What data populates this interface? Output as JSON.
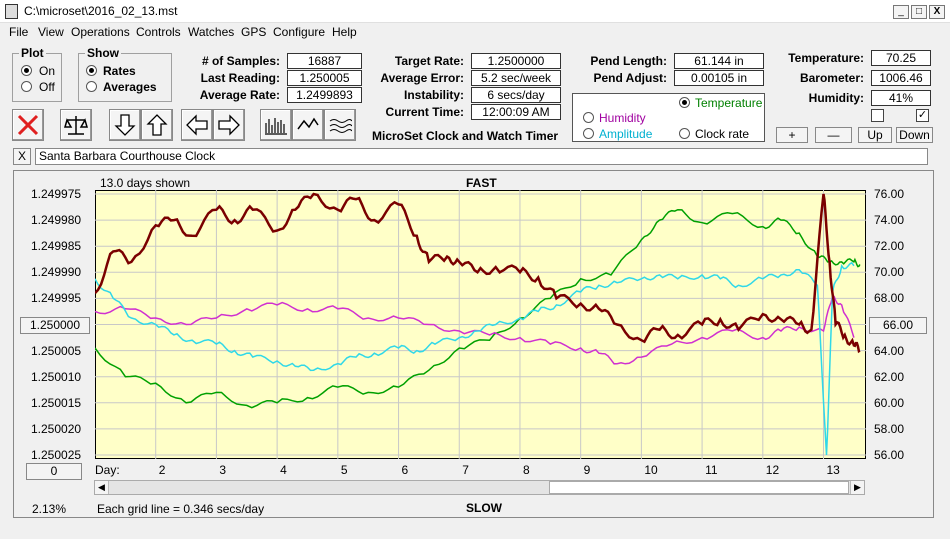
{
  "window": {
    "title": "C:\\microset\\2016_02_13.mst",
    "minimize": "_",
    "maximize": "□",
    "close": "X"
  },
  "menu": [
    "File",
    "View",
    "Operations",
    "Controls",
    "Watches",
    "GPS",
    "Configure",
    "Help"
  ],
  "plot_group": {
    "legend": "Plot",
    "options": [
      "On",
      "Off"
    ],
    "selected": 0
  },
  "show_group": {
    "legend": "Show",
    "options": [
      "Rates",
      "Averages"
    ],
    "selected": 0
  },
  "readouts_left": [
    {
      "label": "# of Samples:",
      "value": "16887"
    },
    {
      "label": "Last Reading:",
      "value": "1.250005"
    },
    {
      "label": "Average Rate:",
      "value": "1.2499893"
    }
  ],
  "readouts_mid": [
    {
      "label": "Target Rate:",
      "value": "1.2500000"
    },
    {
      "label": "Average Error:",
      "value": "5.2 sec/week"
    },
    {
      "label": "Instability:",
      "value": "6 secs/day"
    },
    {
      "label": "Current Time:",
      "value": "12:00:09 AM"
    }
  ],
  "readouts_pend": [
    {
      "label": "Pend Length:",
      "value": "61.144 in"
    },
    {
      "label": "Pend Adjust:",
      "value": "0.00105 in"
    }
  ],
  "readouts_env": [
    {
      "label": "Temperature:",
      "value": "70.25"
    },
    {
      "label": "Barometer:",
      "value": "1006.46"
    },
    {
      "label": "Humidity:",
      "value": "41%"
    }
  ],
  "app_caption": "MicroSet Clock and Watch Timer",
  "series_select": {
    "options": [
      {
        "label": "Temperature",
        "color": "#008000",
        "selected": true
      },
      {
        "label": "Humidity",
        "color": "#a000a0",
        "selected": false
      },
      {
        "label": "Amplitude",
        "color": "#00b0d0",
        "selected": false
      },
      {
        "label": "Clock rate",
        "color": "#000000",
        "selected": false
      }
    ]
  },
  "checkbox_marks": [
    "",
    "✓"
  ],
  "adjust_buttons": [
    "+",
    "—",
    "Up",
    "Down"
  ],
  "clock_name": {
    "close_label": "X",
    "value": "Santa Barbara Courthouse Clock"
  },
  "plot": {
    "days_shown": "13.0 days shown",
    "top_label": "FAST",
    "bottom_label": "SLOW",
    "left_center_button": "1.250000",
    "right_center_button": "66.00",
    "bottom_left_button": "0",
    "zoom_readout": "2.13%",
    "grid_note": "Each grid line = 0.346 secs/day",
    "day_prefix": "Day:"
  },
  "chart_data": {
    "type": "line",
    "x_ticks": [
      2,
      3,
      4,
      5,
      6,
      7,
      8,
      9,
      10,
      11,
      12,
      13
    ],
    "xlim": [
      1,
      13.7
    ],
    "left_axis": {
      "ticks": [
        "1.249975",
        "1.249980",
        "1.249985",
        "1.249990",
        "1.249995",
        "1.250000",
        "1.250005",
        "1.250010",
        "1.250015",
        "1.250020",
        "1.250025"
      ],
      "ylim": [
        1.249975,
        1.250025
      ],
      "inverted": true
    },
    "right_axis": {
      "ticks": [
        "76.00",
        "74.00",
        "72.00",
        "70.00",
        "68.00",
        "66.00",
        "64.00",
        "62.00",
        "60.00",
        "58.00",
        "56.00"
      ],
      "ylim": [
        56,
        76
      ]
    },
    "series": [
      {
        "name": "Clock rate",
        "color": "#7a0000",
        "axis": "left",
        "x": [
          1,
          1.3,
          1.6,
          2.0,
          2.3,
          2.6,
          3.0,
          3.3,
          3.6,
          4.0,
          4.3,
          4.6,
          5.0,
          5.3,
          5.6,
          6.0,
          6.3,
          6.5,
          6.8,
          7.0,
          7.3,
          7.6,
          8.0,
          8.3,
          8.6,
          9.0,
          9.3,
          9.6,
          10.0,
          10.3,
          10.6,
          11.0,
          11.3,
          11.6,
          12.0,
          12.3,
          12.6,
          12.8,
          13.0,
          13.1,
          13.2,
          13.35,
          13.5,
          13.6
        ],
        "y": [
          1.249994,
          1.249986,
          1.249988,
          1.249981,
          1.24998,
          1.249983,
          1.249978,
          1.24998,
          1.249978,
          1.249982,
          1.249978,
          1.249975,
          1.249978,
          1.249976,
          1.24998,
          1.249977,
          1.249983,
          1.249988,
          1.249987,
          1.249988,
          1.24999,
          1.249989,
          1.24999,
          1.249991,
          1.249995,
          1.249996,
          1.249997,
          1.25,
          1.250003,
          1.250001,
          1.250002,
          1.25,
          1.249999,
          1.250001,
          1.249998,
          1.249999,
          1.25,
          1.250001,
          1.249975,
          1.249988,
          1.25,
          1.250002,
          1.250004,
          1.250005
        ]
      },
      {
        "name": "Temperature",
        "color": "#00a000",
        "axis": "right",
        "x": [
          1,
          1.5,
          2.0,
          2.5,
          3.0,
          3.5,
          4.0,
          4.5,
          5.0,
          5.5,
          6.0,
          6.5,
          7.0,
          7.5,
          8.0,
          8.5,
          9.0,
          9.5,
          10.0,
          10.3,
          10.6,
          11.0,
          11.5,
          12.0,
          12.3,
          12.6,
          12.9,
          13.1,
          13.3,
          13.5,
          13.6
        ],
        "y": [
          64.2,
          62.0,
          61.5,
          60.0,
          60.8,
          59.8,
          60.0,
          60.4,
          61.2,
          60.8,
          61.2,
          62.5,
          64.2,
          64.8,
          66.5,
          68.0,
          69.5,
          69.8,
          72.5,
          74.0,
          74.8,
          73.8,
          74.5,
          73.5,
          74.0,
          73.0,
          71.2,
          70.8,
          70.8,
          70.8,
          70.6
        ]
      },
      {
        "name": "Humidity",
        "color": "#d030d0",
        "axis": "right",
        "x": [
          1,
          1.5,
          2.0,
          2.5,
          3.0,
          3.5,
          4.0,
          4.5,
          5.0,
          5.5,
          6.0,
          6.5,
          7.0,
          7.5,
          8.0,
          8.5,
          9.0,
          9.3,
          9.6,
          10.0,
          10.5,
          11.0,
          11.5,
          12.0,
          12.3,
          12.6,
          13.0,
          13.15,
          13.3,
          13.5
        ],
        "y": [
          67.0,
          67.2,
          66.5,
          66.0,
          66.5,
          67.2,
          67.5,
          67.2,
          67.2,
          66.5,
          66.5,
          66.0,
          65.5,
          65.2,
          65.0,
          64.5,
          64.2,
          63.8,
          63.0,
          63.5,
          64.5,
          65.0,
          65.5,
          65.0,
          65.5,
          65.8,
          65.5,
          68.2,
          67.5,
          65.0
        ]
      },
      {
        "name": "Amplitude",
        "color": "#30d8e8",
        "axis": "right",
        "x": [
          1,
          1.3,
          1.6,
          2.0,
          2.3,
          2.6,
          3.0,
          3.3,
          3.6,
          4.0,
          4.3,
          4.6,
          5.0,
          5.3,
          5.6,
          6.0,
          6.3,
          6.6,
          7.0,
          7.3,
          7.6,
          8.0,
          8.3,
          8.6,
          9.0,
          9.3,
          9.6,
          10.0,
          10.3,
          10.6,
          11.0,
          11.3,
          11.6,
          12.0,
          12.3,
          12.6,
          12.9,
          13.05,
          13.15,
          13.3,
          13.5
        ],
        "y": [
          69.5,
          68.0,
          66.5,
          66.0,
          65.2,
          64.8,
          64.5,
          64.0,
          63.5,
          63.2,
          62.8,
          62.5,
          63.0,
          63.5,
          63.8,
          64.2,
          64.0,
          64.5,
          65.0,
          65.5,
          66.0,
          66.5,
          67.0,
          67.5,
          68.5,
          69.0,
          69.2,
          69.5,
          69.8,
          69.5,
          69.8,
          69.5,
          69.0,
          69.5,
          69.8,
          70.2,
          69.0,
          56.0,
          68.5,
          70.5,
          70.5
        ]
      }
    ]
  }
}
